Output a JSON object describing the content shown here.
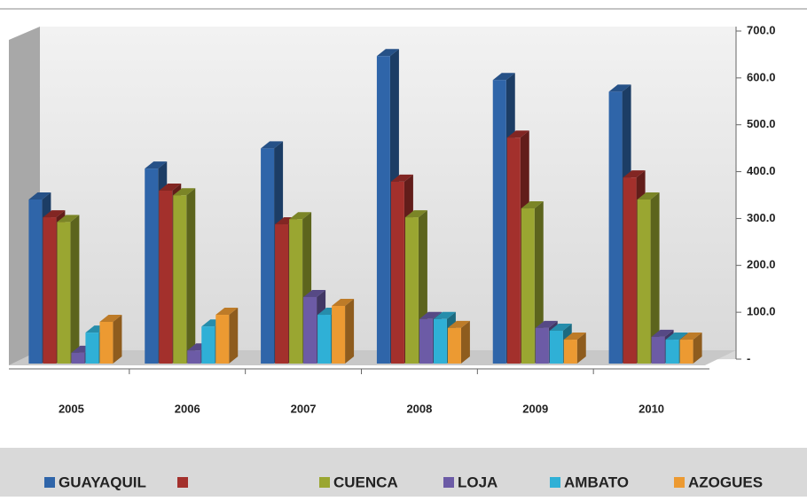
{
  "chart_data": {
    "type": "bar",
    "categories": [
      "2005",
      "2006",
      "2007",
      "2008",
      "2009",
      "2010"
    ],
    "series": [
      {
        "name": "GUAYAQUIL",
        "color": "#2f65a9",
        "values": [
          350,
          416,
          459,
          656,
          605,
          580
        ]
      },
      {
        "name": null,
        "color": "#a3302c",
        "values": [
          312,
          369,
          297,
          388,
          482,
          397
        ]
      },
      {
        "name": "CUENCA",
        "color": "#9aa631",
        "values": [
          302,
          359,
          308,
          312,
          331,
          350
        ]
      },
      {
        "name": "LOJA",
        "color": "#6c5ba6",
        "values": [
          23,
          28,
          142,
          95,
          76,
          57
        ]
      },
      {
        "name": "AMBATO",
        "color": "#2fb0d6",
        "values": [
          66,
          79,
          104,
          95,
          70,
          51
        ]
      },
      {
        "name": "AZOGUES",
        "color": "#ec9a32",
        "values": [
          89,
          104,
          123,
          76,
          51,
          51
        ]
      }
    ],
    "ylim": [
      0,
      700
    ],
    "yticks": [
      {
        "value": 0,
        "label": "-"
      },
      {
        "value": 100,
        "label": "100.0"
      },
      {
        "value": 200,
        "label": "200.0"
      },
      {
        "value": 300,
        "label": "300.0"
      },
      {
        "value": 400,
        "label": "400.0"
      },
      {
        "value": 500,
        "label": "500.0"
      },
      {
        "value": 600,
        "label": "600.0"
      },
      {
        "value": 700,
        "label": "700.0"
      }
    ],
    "legend": "bottom"
  }
}
